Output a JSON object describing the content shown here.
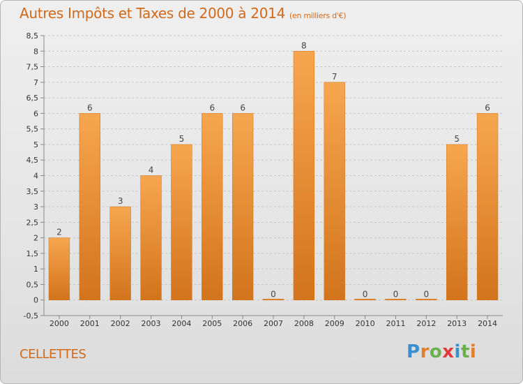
{
  "title": {
    "main": "Autres Impôts et Taxes de 2000 à 2014",
    "unit": "(en milliers d'€)"
  },
  "commune": "CELLETTES",
  "brand": {
    "text": "Proxiti",
    "letter_colors": [
      "#3a8fd0",
      "#e0802a",
      "#6ab04c",
      "#e03a3a",
      "#3a8fd0",
      "#6ab04c",
      "#e0802a"
    ]
  },
  "colors": {
    "bar_light": "#f7a650",
    "bar_dark": "#d2741c",
    "grid": "#c8c8c8",
    "accent": "#d06a1a"
  },
  "chart_data": {
    "type": "bar",
    "title": "Autres Impôts et Taxes de 2000 à 2014",
    "ylabel": "",
    "xlabel": "",
    "categories": [
      "2000",
      "2001",
      "2002",
      "2003",
      "2004",
      "2005",
      "2006",
      "2007",
      "2008",
      "2009",
      "2010",
      "2011",
      "2012",
      "2013",
      "2014"
    ],
    "values": [
      2,
      6,
      3,
      4,
      5,
      6,
      6,
      0,
      8,
      7,
      0,
      0,
      0,
      5,
      6
    ],
    "value_labels": [
      "2",
      "6",
      "3",
      "4",
      "5",
      "6",
      "6",
      "0",
      "8",
      "7",
      "0",
      "0",
      "0",
      "5",
      "6"
    ],
    "ylim": [
      -0.5,
      8.5
    ],
    "yticks": [
      "-0,5",
      "0",
      "0,5",
      "1",
      "1,5",
      "2",
      "2,5",
      "3",
      "3,5",
      "4",
      "4,5",
      "5",
      "5,5",
      "6",
      "6,5",
      "7",
      "7,5",
      "8",
      "8,5"
    ],
    "ytick_values": [
      -0.5,
      0,
      0.5,
      1,
      1.5,
      2,
      2.5,
      3,
      3.5,
      4,
      4.5,
      5,
      5.5,
      6,
      6.5,
      7,
      7.5,
      8,
      8.5
    ],
    "grid": true,
    "legend": "none"
  }
}
